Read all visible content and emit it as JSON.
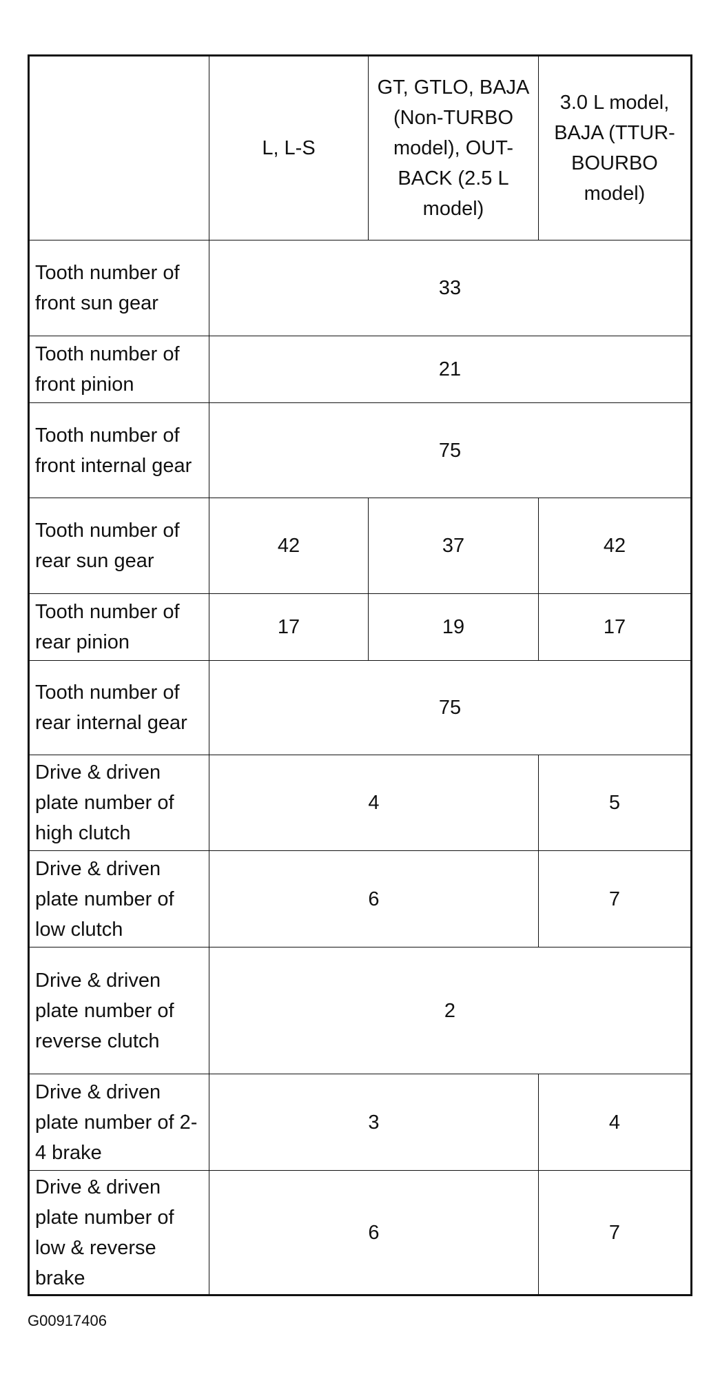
{
  "header": [
    "",
    "L, L-S",
    "GT, GTLO, BAJA (Non-TURBO model), OUT-BACK (2.5 L model)",
    "3.0 L model, BAJA (TTUR-BOURBO model)"
  ],
  "rows": [
    {
      "label": "Tooth number of front sun gear",
      "values": [
        "33"
      ]
    },
    {
      "label": "Tooth number of front pinion",
      "values": [
        "21"
      ]
    },
    {
      "label": "Tooth number of front internal gear",
      "values": [
        "75"
      ]
    },
    {
      "label": "Tooth number of rear sun gear",
      "values": [
        "42",
        "37",
        "42"
      ]
    },
    {
      "label": "Tooth number of rear pinion",
      "values": [
        "17",
        "19",
        "17"
      ]
    },
    {
      "label": "Tooth number of rear internal gear",
      "values": [
        "75"
      ]
    },
    {
      "label": "Drive & driven plate number of high clutch",
      "values": [
        "4",
        "5"
      ]
    },
    {
      "label": "Drive & driven plate number of low clutch",
      "values": [
        "6",
        "7"
      ]
    },
    {
      "label": "Drive & driven plate number of reverse clutch",
      "values": [
        "2"
      ]
    },
    {
      "label": "Drive & driven plate number of 2-4 brake",
      "values": [
        "3",
        "4"
      ]
    },
    {
      "label": "Drive & driven plate number of low & reverse brake",
      "values": [
        "6",
        "7"
      ]
    }
  ],
  "figure_id": "G00917406"
}
